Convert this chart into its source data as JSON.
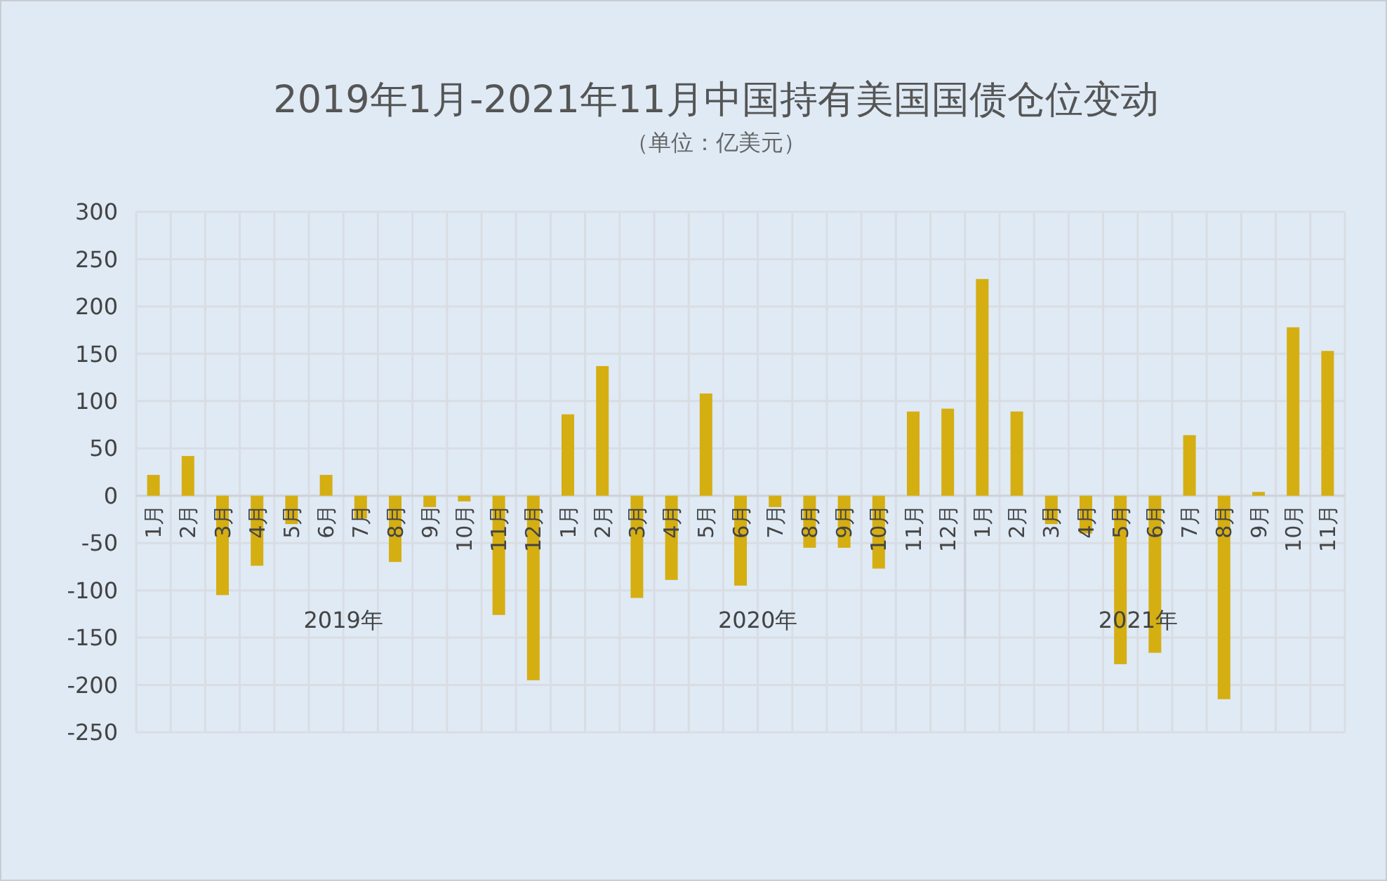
{
  "chart_data": {
    "type": "bar",
    "title": "2019年1月-2021年11月中国持有美国国债仓位变动",
    "subtitle": "（单位：亿美元）",
    "categories": [
      "1月",
      "2月",
      "3月",
      "4月",
      "5月",
      "6月",
      "7月",
      "8月",
      "9月",
      "10月",
      "11月",
      "12月",
      "1月",
      "2月",
      "3月",
      "4月",
      "5月",
      "6月",
      "7月",
      "8月",
      "9月",
      "10月",
      "11月",
      "12月",
      "1月",
      "2月",
      "3月",
      "4月",
      "5月",
      "6月",
      "7月",
      "8月",
      "9月",
      "10月",
      "11月"
    ],
    "values": [
      22,
      42,
      -105,
      -74,
      -30,
      22,
      -24,
      -70,
      -12,
      -6,
      -126,
      -195,
      86,
      137,
      -108,
      -89,
      108,
      -95,
      -12,
      -55,
      -55,
      -77,
      89,
      92,
      229,
      89,
      -30,
      -40,
      -178,
      -166,
      64,
      -215,
      4,
      178,
      153
    ],
    "color": "#d5ae12",
    "ylim": [
      -250,
      300
    ],
    "yticks": [
      -250,
      -200,
      -150,
      -100,
      -50,
      0,
      50,
      100,
      150,
      200,
      250,
      300
    ],
    "grid": true,
    "annotations": [
      "2019年",
      "2020年",
      "2021年"
    ]
  }
}
